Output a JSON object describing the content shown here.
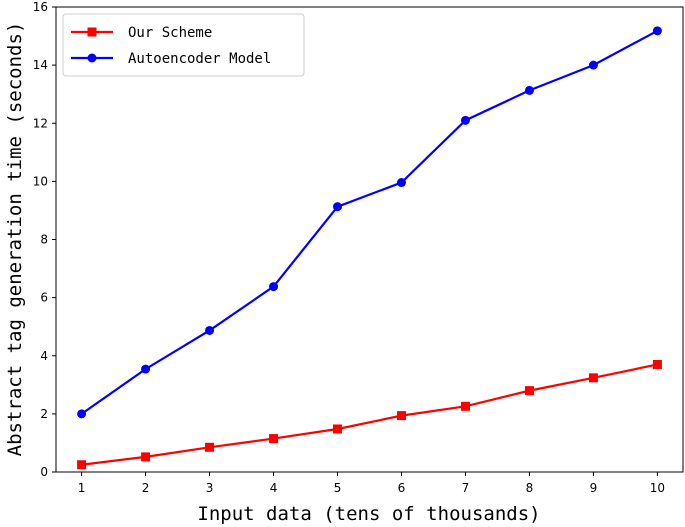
{
  "chart_data": {
    "type": "line",
    "title": "",
    "xlabel": "Input data (tens of thousands)",
    "ylabel": "Abstract tag generation time (seconds)",
    "x": [
      1,
      2,
      3,
      4,
      5,
      6,
      7,
      8,
      9,
      10
    ],
    "xlim": [
      0.6,
      10.4
    ],
    "ylim": [
      0,
      16
    ],
    "xticks": [
      "1",
      "2",
      "3",
      "4",
      "5",
      "6",
      "7",
      "8",
      "9",
      "10"
    ],
    "yticks": [
      "0",
      "2",
      "4",
      "6",
      "8",
      "10",
      "12",
      "14",
      "16"
    ],
    "grid": false,
    "legend_position": "top-left",
    "series": [
      {
        "name": "Our Scheme",
        "color": "#ff0000",
        "marker": "square",
        "values": [
          0.25,
          0.52,
          0.85,
          1.15,
          1.48,
          1.94,
          2.26,
          2.8,
          3.24,
          3.7
        ]
      },
      {
        "name": "Autoencoder Model",
        "color": "#0000ff",
        "marker": "circle",
        "values": [
          2.0,
          3.54,
          4.87,
          6.38,
          9.13,
          9.96,
          12.1,
          13.13,
          14.0,
          15.18
        ]
      }
    ]
  }
}
